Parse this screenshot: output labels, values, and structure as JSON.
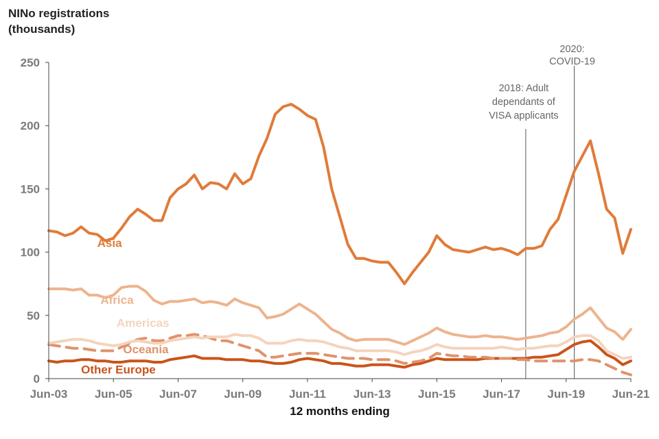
{
  "chart_data": {
    "type": "line",
    "ylabel_lines": [
      "NINo registrations",
      "(thousands)"
    ],
    "xlabel": "12 months ending",
    "ylim": [
      0,
      250
    ],
    "yticks": [
      0,
      50,
      100,
      150,
      200,
      250
    ],
    "x_start": 2003.5,
    "x_end": 2021.5,
    "x_step": 0.25,
    "xtick_labels": [
      "Jun-03",
      "Jun-05",
      "Jun-07",
      "Jun-09",
      "Jun-11",
      "Jun-13",
      "Jun-15",
      "Jun-17",
      "Jun-19",
      "Jun-21"
    ],
    "xtick_values": [
      2003.5,
      2005.5,
      2007.5,
      2009.5,
      2011.5,
      2013.5,
      2015.5,
      2017.5,
      2019.5,
      2021.5
    ],
    "series": [
      {
        "name": "Asia",
        "color": "#e07b39",
        "dashed": false,
        "label_x": 2005.0,
        "label_y": 104,
        "values": [
          117,
          116,
          113,
          115,
          120,
          115,
          114,
          109,
          111,
          119,
          128,
          134,
          130,
          125,
          125,
          143,
          150,
          154,
          161,
          150,
          155,
          154,
          150,
          162,
          154,
          158,
          176,
          190,
          209,
          215,
          217,
          213,
          208,
          205,
          183,
          150,
          128,
          106,
          95,
          95,
          93,
          92,
          92,
          84,
          75,
          84,
          92,
          100,
          113,
          106,
          102,
          101,
          100,
          102,
          104,
          102,
          103,
          101,
          98,
          103,
          103,
          105,
          118,
          126,
          145,
          164,
          176,
          188,
          162,
          134,
          127,
          99,
          118
        ]
      },
      {
        "name": "Africa",
        "color": "#edb48f",
        "dashed": false,
        "label_x": 2005.1,
        "label_y": 59,
        "values": [
          71,
          71,
          71,
          70,
          71,
          66,
          66,
          64,
          66,
          72,
          73,
          73,
          69,
          62,
          59,
          61,
          61,
          62,
          63,
          60,
          61,
          60,
          58,
          63,
          60,
          58,
          56,
          48,
          49,
          51,
          55,
          59,
          55,
          51,
          45,
          39,
          36,
          32,
          30,
          31,
          31,
          31,
          31,
          29,
          27,
          30,
          33,
          36,
          40,
          37,
          35,
          34,
          33,
          33,
          34,
          33,
          33,
          32,
          31,
          32,
          33,
          34,
          36,
          37,
          41,
          47,
          51,
          56,
          48,
          40,
          37,
          31,
          39
        ]
      },
      {
        "name": "Americas",
        "color": "#f5d3bd",
        "dashed": false,
        "label_x": 2005.6,
        "label_y": 41,
        "values": [
          28,
          29,
          30,
          31,
          31,
          30,
          28,
          27,
          26,
          27,
          29,
          30,
          29,
          28,
          28,
          30,
          31,
          32,
          33,
          32,
          33,
          33,
          33,
          35,
          34,
          34,
          32,
          28,
          28,
          28,
          30,
          31,
          30,
          30,
          29,
          27,
          25,
          24,
          22,
          22,
          22,
          22,
          22,
          21,
          19,
          21,
          22,
          24,
          27,
          25,
          24,
          24,
          24,
          24,
          24,
          24,
          25,
          24,
          23,
          24,
          24,
          25,
          26,
          26,
          29,
          33,
          34,
          34,
          30,
          22,
          19,
          16,
          17
        ]
      },
      {
        "name": "Oceania",
        "color": "#e0926a",
        "dashed": true,
        "label_x": 2005.8,
        "label_y": 20,
        "values": [
          27,
          26,
          25,
          24,
          24,
          23,
          22,
          22,
          22,
          25,
          28,
          31,
          32,
          30,
          30,
          32,
          34,
          34,
          35,
          34,
          32,
          30,
          30,
          28,
          26,
          24,
          22,
          17,
          17,
          18,
          19,
          20,
          20,
          20,
          19,
          18,
          17,
          16,
          16,
          16,
          15,
          15,
          15,
          14,
          12,
          13,
          14,
          16,
          20,
          19,
          18,
          18,
          17,
          17,
          17,
          16,
          16,
          16,
          15,
          15,
          14,
          14,
          14,
          14,
          14,
          14,
          15,
          15,
          14,
          11,
          8,
          5,
          3
        ]
      },
      {
        "name": "Other Europe",
        "color": "#c9541a",
        "dashed": false,
        "label_x": 2004.5,
        "label_y": 4,
        "values": [
          14,
          13,
          14,
          14,
          15,
          15,
          14,
          14,
          13,
          13,
          14,
          14,
          14,
          13,
          13,
          15,
          16,
          17,
          18,
          16,
          16,
          16,
          15,
          15,
          15,
          14,
          14,
          13,
          12,
          12,
          13,
          15,
          16,
          15,
          14,
          12,
          12,
          11,
          10,
          10,
          11,
          11,
          11,
          10,
          9,
          11,
          12,
          14,
          16,
          15,
          15,
          15,
          15,
          15,
          16,
          16,
          16,
          16,
          16,
          16,
          17,
          17,
          18,
          19,
          23,
          27,
          29,
          30,
          25,
          19,
          16,
          11,
          14
        ]
      }
    ],
    "annotations": [
      {
        "lines": [
          "2018: Adult",
          "dependants of",
          "VISA applicants"
        ],
        "x": 2018.25
      },
      {
        "lines": [
          "2020:",
          "COVID-19"
        ],
        "x": 2019.75
      }
    ]
  }
}
